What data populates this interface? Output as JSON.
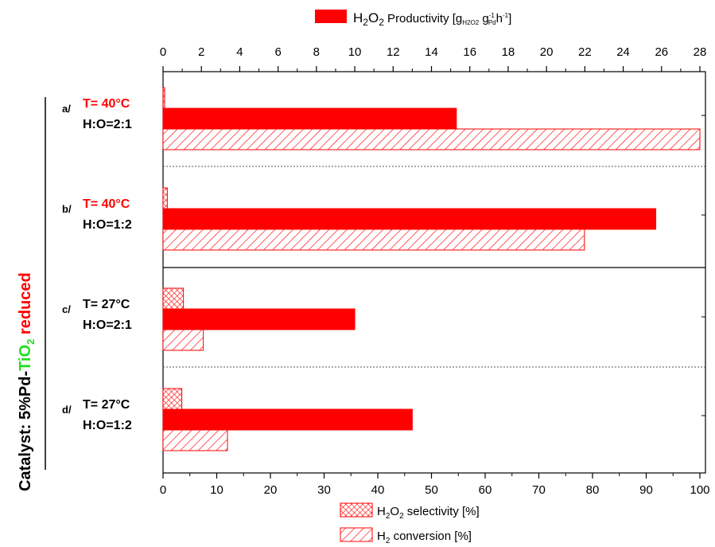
{
  "colors": {
    "bar": "#ff0000",
    "axis": "#000000",
    "ti": "#22dd22",
    "text": "#000000"
  },
  "legend": {
    "productivity": {
      "main": "H",
      "sub1": "2",
      "mid": "O",
      "sub2": "2",
      "rest": " Productivity [g",
      "sub3": "H2O2",
      "g": " g",
      "sup1": "-1",
      "sub4": "Pd",
      "h": "h",
      "sup2": "-1",
      "close": "]"
    },
    "selectivity": {
      "main": "H",
      "sub1": "2",
      "mid": "O",
      "sub2": "2",
      "rest": " selectivity [%]"
    },
    "conversion": {
      "main": "H",
      "sub1": "2",
      "rest": " conversion [%]"
    }
  },
  "catalyst_label": {
    "prefix": "Catalyst: 5%Pd-",
    "ti": "TiO",
    "ti_sub": "2",
    "suffix": " reduced"
  },
  "chart_data": {
    "type": "bar",
    "orientation": "horizontal",
    "categories": [
      "a/",
      "b/",
      "c/",
      "d/"
    ],
    "category_labels": [
      {
        "tag": "a/",
        "temp": "T= 40°C",
        "ratio": "H:O=2:1",
        "temp_color": "#ff0000"
      },
      {
        "tag": "b/",
        "temp": "T= 40°C",
        "ratio": "H:O=1:2",
        "temp_color": "#ff0000"
      },
      {
        "tag": "c/",
        "temp": "T= 27°C",
        "ratio": "H:O=2:1",
        "temp_color": "#000000"
      },
      {
        "tag": "d/",
        "temp": "T= 27°C",
        "ratio": "H:O=1:2",
        "temp_color": "#000000"
      }
    ],
    "series": [
      {
        "name": "H2O2 selectivity [%]",
        "axis": "bottom",
        "pattern": "crosshatch",
        "values": [
          0.3,
          0.8,
          3.8,
          3.5
        ]
      },
      {
        "name": "H2O2 Productivity [gH2O2 gPd-1 h-1]",
        "axis": "top",
        "pattern": "solid",
        "values": [
          15.3,
          25.7,
          10.0,
          13.0
        ]
      },
      {
        "name": "H2 conversion [%]",
        "axis": "bottom",
        "pattern": "diagonal",
        "values": [
          100,
          78.5,
          7.5,
          12
        ]
      }
    ],
    "x_bottom": {
      "lim": [
        0,
        100
      ],
      "ticks": [
        "0",
        "10",
        "20",
        "30",
        "40",
        "50",
        "60",
        "70",
        "80",
        "90",
        "100"
      ]
    },
    "x_top": {
      "lim": [
        0,
        28
      ],
      "ticks": [
        "0",
        "2",
        "4",
        "6",
        "8",
        "10",
        "12",
        "14",
        "16",
        "18",
        "20",
        "22",
        "24",
        "26",
        "28"
      ]
    },
    "legend_position": "top and bottom"
  }
}
